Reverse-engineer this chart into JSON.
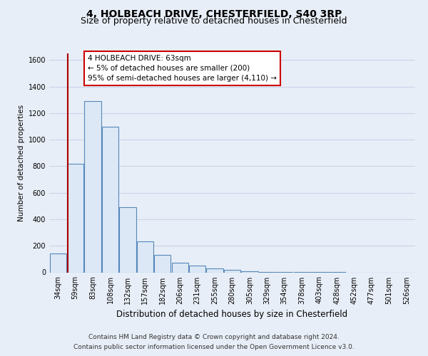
{
  "title": "4, HOLBEACH DRIVE, CHESTERFIELD, S40 3RP",
  "subtitle": "Size of property relative to detached houses in Chesterfield",
  "xlabel": "Distribution of detached houses by size in Chesterfield",
  "ylabel": "Number of detached properties",
  "bar_labels": [
    "34sqm",
    "59sqm",
    "83sqm",
    "108sqm",
    "132sqm",
    "157sqm",
    "182sqm",
    "206sqm",
    "231sqm",
    "255sqm",
    "280sqm",
    "305sqm",
    "329sqm",
    "354sqm",
    "378sqm",
    "403sqm",
    "428sqm",
    "452sqm",
    "477sqm",
    "501sqm",
    "526sqm"
  ],
  "bar_values": [
    140,
    820,
    1290,
    1095,
    490,
    235,
    130,
    75,
    50,
    28,
    18,
    8,
    3,
    1,
    1,
    1,
    1,
    0,
    0,
    0,
    0
  ],
  "bar_color": "#dce8f5",
  "bar_edge_color": "#5588bb",
  "vline_color": "#aa0000",
  "vline_x": 0.575,
  "ylim": [
    0,
    1650
  ],
  "yticks": [
    0,
    200,
    400,
    600,
    800,
    1000,
    1200,
    1400,
    1600
  ],
  "annotation_line1": "4 HOLBEACH DRIVE: 63sqm",
  "annotation_line2": "← 5% of detached houses are smaller (200)",
  "annotation_line3": "95% of semi-detached houses are larger (4,110) →",
  "annotation_box_facecolor": "#ffffff",
  "annotation_box_edgecolor": "#cc0000",
  "footer_line1": "Contains HM Land Registry data © Crown copyright and database right 2024.",
  "footer_line2": "Contains public sector information licensed under the Open Government Licence v3.0.",
  "bg_color": "#e8eef7",
  "plot_bg_color": "#e8eef7",
  "grid_color": "#c8d4e8",
  "title_fontsize": 10,
  "subtitle_fontsize": 9,
  "xlabel_fontsize": 8.5,
  "ylabel_fontsize": 7.5,
  "tick_fontsize": 7,
  "annot_fontsize": 7.5,
  "footer_fontsize": 6.5
}
